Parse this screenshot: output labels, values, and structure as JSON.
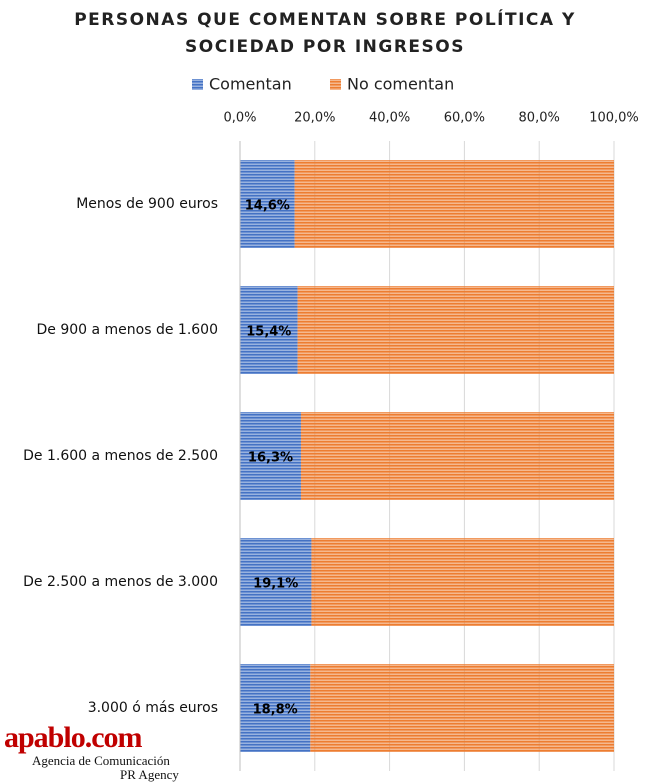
{
  "chart_data": {
    "type": "stacked-bar-horizontal",
    "title": [
      "PERSONAS QUE COMENTAN SOBRE POLÍTICA Y",
      "SOCIEDAD POR INGRESOS"
    ],
    "categories": [
      "Menos de 900 euros",
      "De 900 a menos de 1.600",
      "De 1.600 a menos de 2.500",
      "De 2.500 a menos de 3.000",
      "3.000 ó más euros"
    ],
    "series": [
      {
        "name": "Comentan",
        "color": "#4472c4",
        "values": [
          14.6,
          15.4,
          16.3,
          19.1,
          18.8
        ],
        "value_labels": [
          "14,6%",
          "15,4%",
          "16,3%",
          "19,1%",
          "18,8%"
        ]
      },
      {
        "name": "No comentan",
        "color": "#ed7d31",
        "values": [
          85.4,
          84.6,
          83.7,
          80.9,
          81.2
        ]
      }
    ],
    "xlim": [
      0,
      100
    ],
    "xticks": [
      {
        "value": 0,
        "label": "0,0%"
      },
      {
        "value": 20,
        "label": "20,0%"
      },
      {
        "value": 40,
        "label": "40,0%"
      },
      {
        "value": 60,
        "label": "60,0%"
      },
      {
        "value": 80,
        "label": "80,0%"
      },
      {
        "value": 100,
        "label": "100,0%"
      }
    ],
    "grid": true
  },
  "watermark": {
    "brand": "apablo.com",
    "line1": "Agencia de Comunicación",
    "line2": "PR Agency"
  }
}
